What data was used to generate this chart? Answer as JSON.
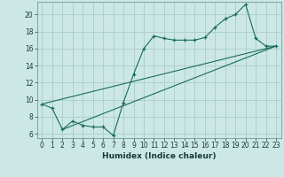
{
  "title": "",
  "xlabel": "Humidex (Indice chaleur)",
  "bg_color": "#cce8e4",
  "grid_color": "#aaccca",
  "line_color": "#1a6b60",
  "xlim": [
    -0.5,
    23.5
  ],
  "ylim": [
    5.5,
    21.5
  ],
  "xticks": [
    0,
    1,
    2,
    3,
    4,
    5,
    6,
    7,
    8,
    9,
    10,
    11,
    12,
    13,
    14,
    15,
    16,
    17,
    18,
    19,
    20,
    21,
    22,
    23
  ],
  "yticks": [
    6,
    8,
    10,
    12,
    14,
    16,
    18,
    20
  ],
  "series1_x": [
    0,
    1,
    2,
    3,
    4,
    5,
    6,
    7,
    8,
    9,
    10,
    11,
    12,
    13,
    14,
    15,
    16,
    17,
    18,
    19,
    20,
    21,
    22,
    23
  ],
  "series1_y": [
    9.5,
    9.0,
    6.5,
    7.5,
    7.0,
    6.8,
    6.8,
    5.8,
    9.7,
    13.0,
    16.0,
    17.5,
    17.2,
    17.0,
    17.0,
    17.0,
    17.3,
    18.5,
    19.5,
    20.0,
    21.2,
    17.2,
    16.3,
    16.3
  ],
  "series2_x": [
    0,
    23
  ],
  "series2_y": [
    9.5,
    16.3
  ],
  "series3_x": [
    2,
    23
  ],
  "series3_y": [
    6.5,
    16.3
  ]
}
